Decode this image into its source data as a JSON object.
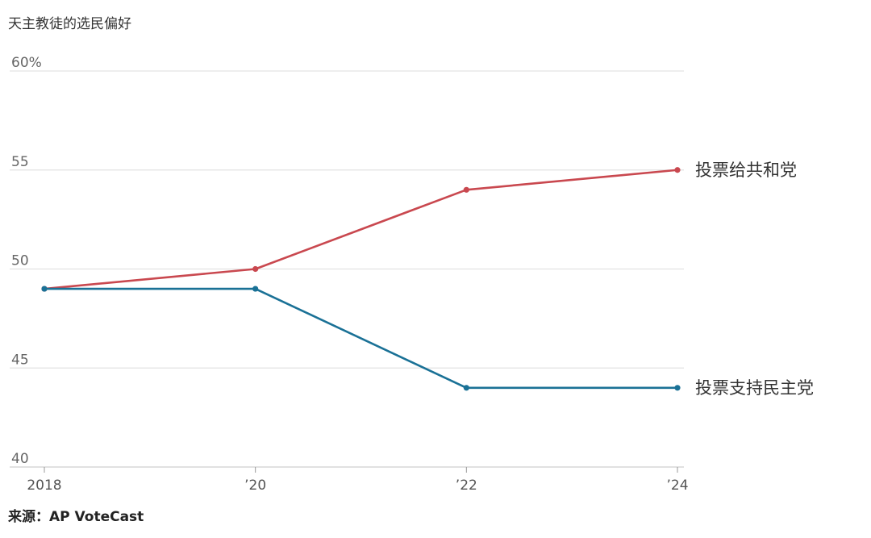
{
  "chart_data": {
    "type": "line",
    "title": "天主教徒的选民偏好",
    "x": [
      "2018",
      "’20",
      "’22",
      "’24"
    ],
    "ylim": [
      40,
      60
    ],
    "yticks": [
      "40",
      "45",
      "50",
      "55",
      "60%"
    ],
    "grid": true,
    "series": [
      {
        "name": "投票给共和党",
        "values": [
          49,
          50,
          54,
          55
        ],
        "color": "#c9484f"
      },
      {
        "name": "投票支持民主党",
        "values": [
          49,
          49,
          44,
          44
        ],
        "color": "#1a7196"
      }
    ],
    "source": "来源：AP VoteCast"
  }
}
